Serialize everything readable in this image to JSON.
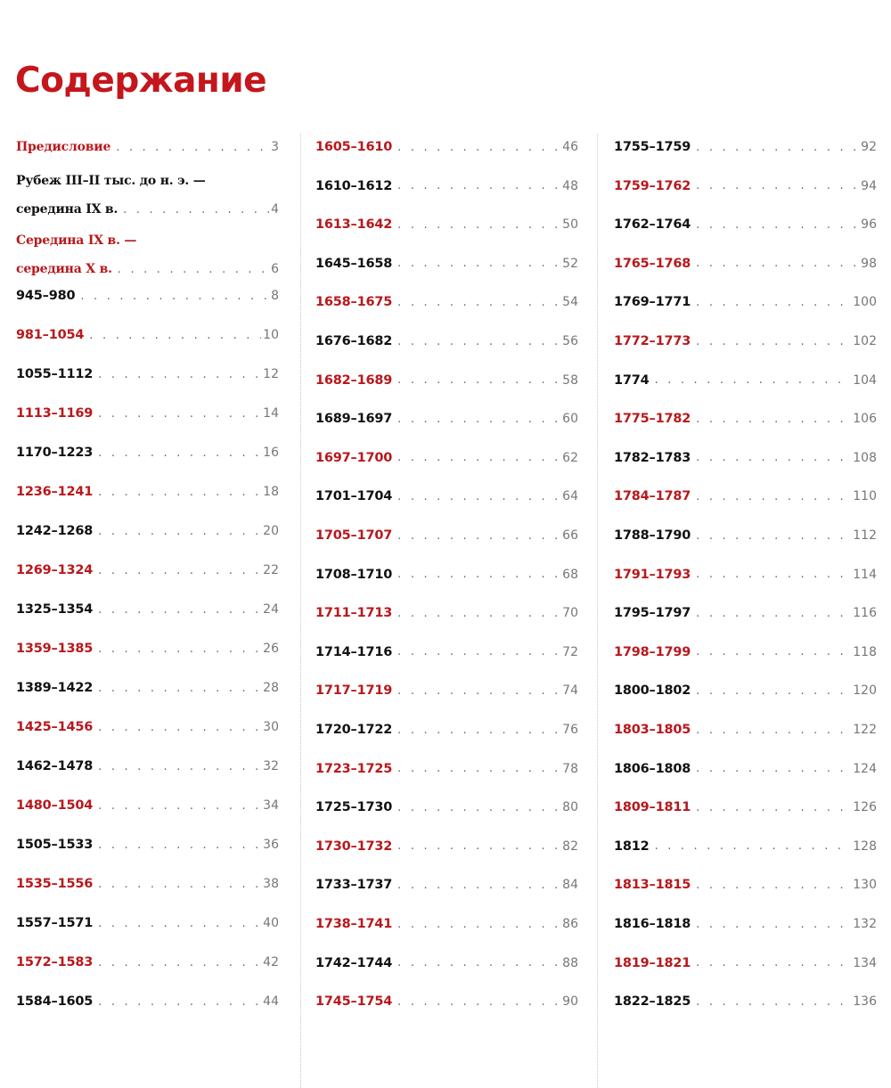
{
  "title": "Содержание",
  "colors": {
    "accent": "#b8181c",
    "text": "#111111"
  },
  "columns": [
    [
      {
        "label": "Предисловие",
        "page": "3",
        "color": "red",
        "text": true
      },
      {
        "label": "Рубеж III–II тыс. до н. э. —",
        "label_cont": "середина IX в.",
        "page": "4",
        "color": "black",
        "text": true
      },
      {
        "label": "Середина IX в. —",
        "label_cont": "середина X в.",
        "page": "6",
        "color": "red",
        "text": true
      },
      {
        "label": "945–980",
        "page": "8",
        "color": "black"
      },
      {
        "label": "981–1054",
        "page": "10",
        "color": "red"
      },
      {
        "label": "1055–1112",
        "page": "12",
        "color": "black"
      },
      {
        "label": "1113–1169",
        "page": "14",
        "color": "red"
      },
      {
        "label": "1170–1223",
        "page": "16",
        "color": "black"
      },
      {
        "label": "1236–1241",
        "page": "18",
        "color": "red"
      },
      {
        "label": "1242–1268",
        "page": "20",
        "color": "black"
      },
      {
        "label": "1269–1324",
        "page": "22",
        "color": "red"
      },
      {
        "label": "1325–1354",
        "page": "24",
        "color": "black"
      },
      {
        "label": "1359–1385",
        "page": "26",
        "color": "red"
      },
      {
        "label": "1389–1422",
        "page": "28",
        "color": "black"
      },
      {
        "label": "1425–1456",
        "page": "30",
        "color": "red"
      },
      {
        "label": "1462–1478",
        "page": "32",
        "color": "black"
      },
      {
        "label": "1480–1504",
        "page": "34",
        "color": "red"
      },
      {
        "label": "1505–1533",
        "page": "36",
        "color": "black"
      },
      {
        "label": "1535–1556",
        "page": "38",
        "color": "red"
      },
      {
        "label": "1557–1571",
        "page": "40",
        "color": "black"
      },
      {
        "label": "1572–1583",
        "page": "42",
        "color": "red"
      },
      {
        "label": "1584–1605",
        "page": "44",
        "color": "black"
      }
    ],
    [
      {
        "label": "1605–1610",
        "page": "46",
        "color": "red"
      },
      {
        "label": "1610–1612",
        "page": "48",
        "color": "black"
      },
      {
        "label": "1613–1642",
        "page": "50",
        "color": "red"
      },
      {
        "label": "1645–1658",
        "page": "52",
        "color": "black"
      },
      {
        "label": "1658–1675",
        "page": "54",
        "color": "red"
      },
      {
        "label": "1676–1682",
        "page": "56",
        "color": "black"
      },
      {
        "label": "1682–1689",
        "page": "58",
        "color": "red"
      },
      {
        "label": "1689–1697",
        "page": "60",
        "color": "black"
      },
      {
        "label": "1697–1700",
        "page": "62",
        "color": "red"
      },
      {
        "label": "1701–1704",
        "page": "64",
        "color": "black"
      },
      {
        "label": "1705–1707",
        "page": "66",
        "color": "red"
      },
      {
        "label": "1708–1710",
        "page": "68",
        "color": "black"
      },
      {
        "label": "1711–1713",
        "page": "70",
        "color": "red"
      },
      {
        "label": "1714–1716",
        "page": "72",
        "color": "black"
      },
      {
        "label": "1717–1719",
        "page": "74",
        "color": "red"
      },
      {
        "label": "1720–1722",
        "page": "76",
        "color": "black"
      },
      {
        "label": "1723–1725",
        "page": "78",
        "color": "red"
      },
      {
        "label": "1725–1730",
        "page": "80",
        "color": "black"
      },
      {
        "label": "1730–1732",
        "page": "82",
        "color": "red"
      },
      {
        "label": "1733–1737",
        "page": "84",
        "color": "black"
      },
      {
        "label": "1738–1741",
        "page": "86",
        "color": "red"
      },
      {
        "label": "1742–1744",
        "page": "88",
        "color": "black"
      },
      {
        "label": "1745–1754",
        "page": "90",
        "color": "red"
      }
    ],
    [
      {
        "label": "1755–1759",
        "page": "92",
        "color": "black"
      },
      {
        "label": "1759–1762",
        "page": "94",
        "color": "red"
      },
      {
        "label": "1762–1764",
        "page": "96",
        "color": "black"
      },
      {
        "label": "1765–1768",
        "page": "98",
        "color": "red"
      },
      {
        "label": "1769–1771",
        "page": "100",
        "color": "black"
      },
      {
        "label": "1772–1773",
        "page": "102",
        "color": "red"
      },
      {
        "label": "1774",
        "page": "104",
        "color": "black"
      },
      {
        "label": "1775–1782",
        "page": "106",
        "color": "red"
      },
      {
        "label": "1782–1783",
        "page": "108",
        "color": "black"
      },
      {
        "label": "1784–1787",
        "page": "110",
        "color": "red"
      },
      {
        "label": "1788–1790",
        "page": "112",
        "color": "black"
      },
      {
        "label": "1791–1793",
        "page": "114",
        "color": "red"
      },
      {
        "label": "1795–1797",
        "page": "116",
        "color": "black"
      },
      {
        "label": "1798–1799",
        "page": "118",
        "color": "red"
      },
      {
        "label": "1800–1802",
        "page": "120",
        "color": "black"
      },
      {
        "label": "1803–1805",
        "page": "122",
        "color": "red"
      },
      {
        "label": "1806–1808",
        "page": "124",
        "color": "black"
      },
      {
        "label": "1809–1811",
        "page": "126",
        "color": "red"
      },
      {
        "label": "1812",
        "page": "128",
        "color": "black"
      },
      {
        "label": "1813–1815",
        "page": "130",
        "color": "red"
      },
      {
        "label": "1816–1818",
        "page": "132",
        "color": "black"
      },
      {
        "label": "1819–1821",
        "page": "134",
        "color": "red"
      },
      {
        "label": "1822–1825",
        "page": "136",
        "color": "black"
      }
    ]
  ]
}
